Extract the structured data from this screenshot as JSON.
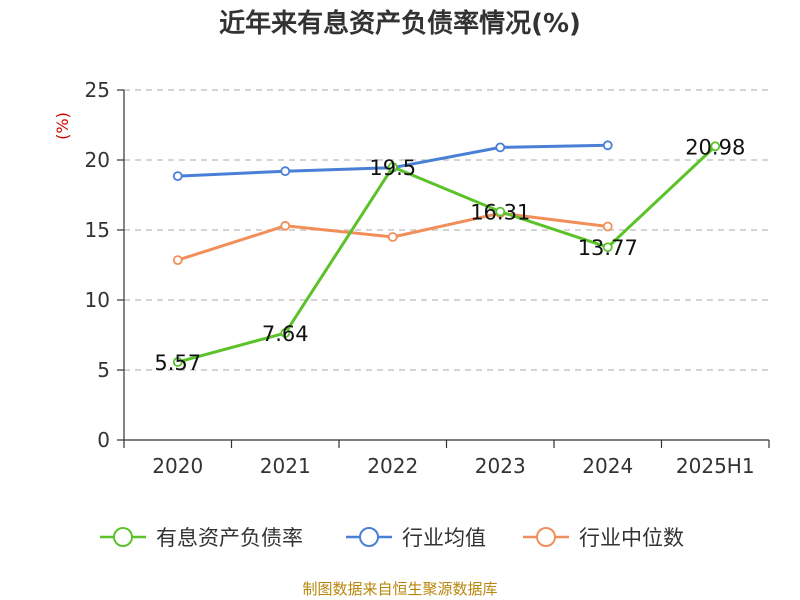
{
  "chart_data": {
    "type": "line",
    "title": "近年来有息资产负债率情况(%)",
    "ylabel": "(%)",
    "categories": [
      "2020",
      "2021",
      "2022",
      "2023",
      "2024",
      "2025H1"
    ],
    "ylim": [
      0,
      25
    ],
    "yticks": [
      0,
      5,
      10,
      15,
      20,
      25
    ],
    "grid": true,
    "legend_position": "bottom",
    "series": [
      {
        "name": "有息资产负债率",
        "color": "#5cc22a",
        "values": [
          5.57,
          7.64,
          19.5,
          16.31,
          13.77,
          20.98
        ],
        "labels": [
          "5.57",
          "7.64",
          "19.5",
          "16.31",
          "13.77",
          "20.98"
        ]
      },
      {
        "name": "行业均值",
        "color": "#4a7fd8",
        "values": [
          18.85,
          19.2,
          19.45,
          20.9,
          21.05,
          null
        ]
      },
      {
        "name": "行业中位数",
        "color": "#f28e5a",
        "values": [
          12.85,
          15.3,
          14.5,
          16.2,
          15.25,
          null
        ]
      }
    ]
  },
  "footer": {
    "source": "制图数据来自恒生聚源数据库"
  }
}
